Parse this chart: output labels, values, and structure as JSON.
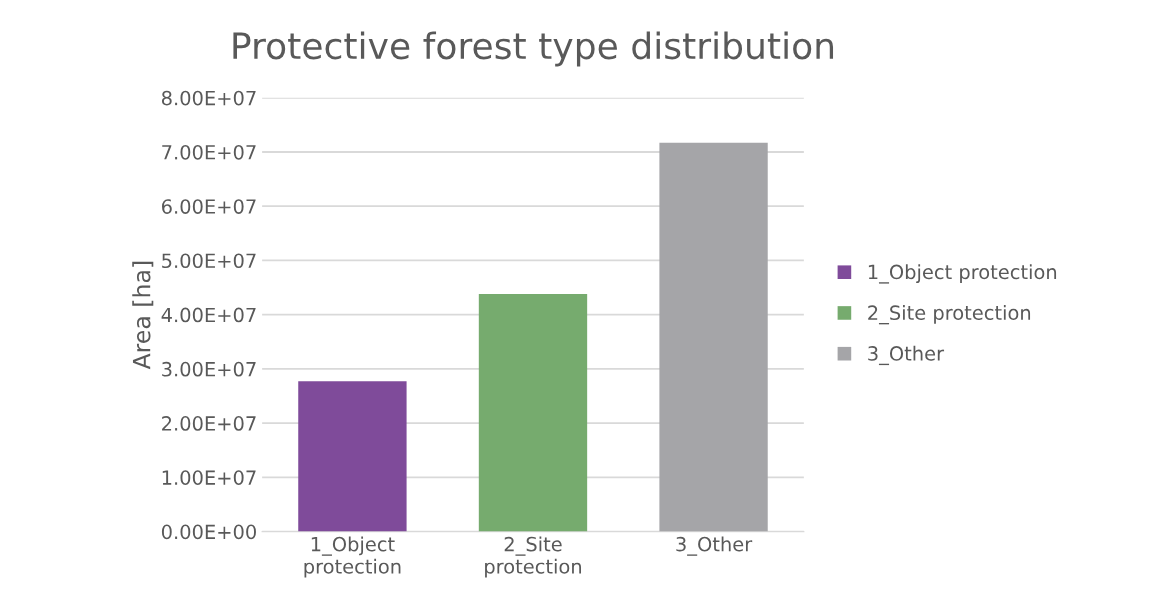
{
  "chart_data": {
    "type": "bar",
    "title": "Protective forest type distribution",
    "ylabel": "Area [ha]",
    "categories": [
      "1_Object protection",
      "2_Site protection",
      "3_Other"
    ],
    "series": [
      {
        "name": "1_Object protection",
        "color": "#7f4b9a",
        "values": [
          27700000,
          null,
          null
        ]
      },
      {
        "name": "2_Site protection",
        "color": "#76ab6e",
        "values": [
          null,
          43800000,
          null
        ]
      },
      {
        "name": "3_Other",
        "color": "#a5a5a8",
        "values": [
          null,
          null,
          71700000
        ]
      }
    ],
    "ylim": [
      0,
      80000000
    ],
    "yticks": [
      {
        "value": 0,
        "label": "0.00E+00"
      },
      {
        "value": 10000000,
        "label": "1.00E+07"
      },
      {
        "value": 20000000,
        "label": "2.00E+07"
      },
      {
        "value": 30000000,
        "label": "3.00E+07"
      },
      {
        "value": 40000000,
        "label": "4.00E+07"
      },
      {
        "value": 50000000,
        "label": "5.00E+07"
      },
      {
        "value": 60000000,
        "label": "6.00E+07"
      },
      {
        "value": 70000000,
        "label": "7.00E+07"
      },
      {
        "value": 80000000,
        "label": "8.00E+07"
      }
    ],
    "grid": "y",
    "legend": "right"
  }
}
